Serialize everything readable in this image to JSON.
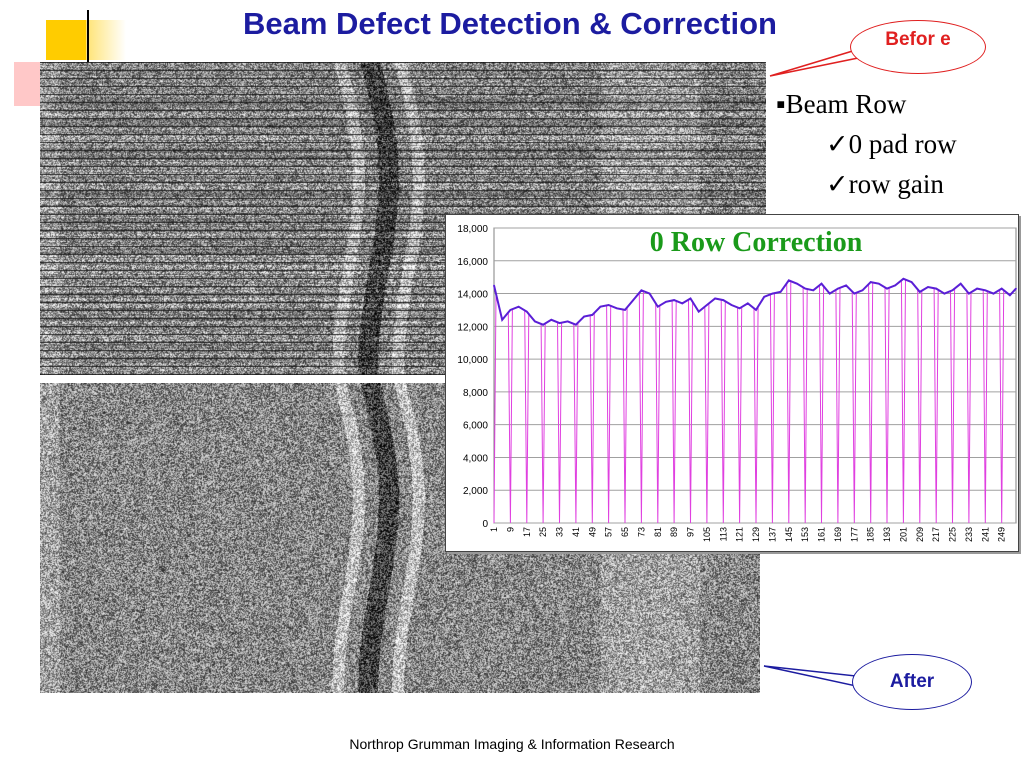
{
  "slide": {
    "title": "Beam Defect Detection & Correction",
    "footer": "Northrop Grumman Imaging & Information Research"
  },
  "callouts": {
    "before": "Befor e",
    "after": "After"
  },
  "bullets": [
    {
      "marker": "▪",
      "text": "Beam Row",
      "level": 1
    },
    {
      "marker": "✓",
      "text": "0 pad row",
      "level": 2
    },
    {
      "marker": "✓",
      "text": "row gain",
      "level": 2
    }
  ],
  "images": {
    "before": "sonar-image-before",
    "after": "sonar-image-after"
  },
  "colors": {
    "title": "#1c1ca0",
    "before_callout": "#e02020",
    "after_callout": "#1c1ca0",
    "chart_title": "#1a9a1a",
    "series_blue": "#5a1fd6",
    "series_magenta": "#e040e0",
    "grid": "#a0a0a0"
  },
  "chart_data": {
    "type": "line",
    "title": "0 Row Correction",
    "xlabel": "",
    "ylabel": "",
    "ylim": [
      0,
      18000
    ],
    "yticks": [
      "0",
      "2,000",
      "4,000",
      "6,000",
      "8,000",
      "10,000",
      "12,000",
      "14,000",
      "16,000",
      "18,000"
    ],
    "xtick_labels": [
      "1",
      "9",
      "17",
      "25",
      "33",
      "41",
      "49",
      "57",
      "65",
      "73",
      "81",
      "89",
      "97",
      "105",
      "113",
      "121",
      "129",
      "137",
      "145",
      "153",
      "161",
      "169",
      "177",
      "185",
      "193",
      "201",
      "209",
      "217",
      "225",
      "233",
      "241",
      "249"
    ],
    "x_range": [
      1,
      256
    ],
    "grid": true,
    "series": [
      {
        "color": "#5a1fd6",
        "x": [
          1,
          5,
          9,
          13,
          17,
          21,
          25,
          29,
          33,
          37,
          41,
          45,
          49,
          53,
          57,
          61,
          65,
          69,
          73,
          77,
          81,
          85,
          89,
          93,
          97,
          101,
          105,
          109,
          113,
          117,
          121,
          125,
          129,
          133,
          137,
          141,
          145,
          149,
          153,
          157,
          161,
          165,
          169,
          173,
          177,
          181,
          185,
          189,
          193,
          197,
          201,
          205,
          209,
          213,
          217,
          221,
          225,
          229,
          233,
          237,
          241,
          245,
          249,
          253,
          256
        ],
        "values": [
          14500,
          12400,
          13000,
          13200,
          12900,
          12300,
          12100,
          12400,
          12200,
          12300,
          12100,
          12600,
          12700,
          13200,
          13300,
          13100,
          13000,
          13600,
          14200,
          14000,
          13200,
          13500,
          13600,
          13400,
          13700,
          12900,
          13300,
          13700,
          13600,
          13300,
          13100,
          13400,
          13000,
          13800,
          14000,
          14100,
          14800,
          14600,
          14300,
          14200,
          14600,
          14000,
          14300,
          14500,
          14000,
          14200,
          14700,
          14600,
          14300,
          14500,
          14900,
          14700,
          14100,
          14400,
          14300,
          14000,
          14200,
          14600,
          14000,
          14300,
          14200,
          14000,
          14300,
          13900,
          14300
        ]
      },
      {
        "color": "#e040e0",
        "description": "zero pad rows (value drops to 0 every 8th row)",
        "period": 8,
        "first_zero_row": 1
      }
    ]
  }
}
